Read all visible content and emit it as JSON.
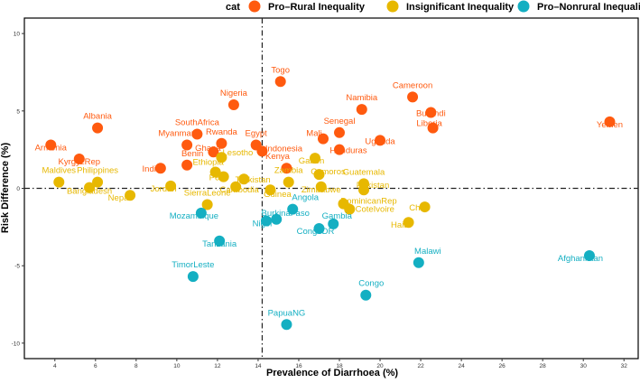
{
  "chart_data": {
    "type": "scatter",
    "title": "",
    "xlabel": "Prevalence of Diarrhoea (%)",
    "ylabel": "Risk Difference (%)",
    "xlim": [
      2.5,
      32.7
    ],
    "ylim": [
      -11,
      11
    ],
    "xticks": [
      4,
      6,
      8,
      10,
      12,
      14,
      16,
      18,
      20,
      22,
      24,
      26,
      28,
      30,
      32
    ],
    "yticks": [
      -10,
      -5,
      0,
      5,
      10
    ],
    "reference_lines": {
      "vertical_x": 14.2,
      "horizontal_y": 0
    },
    "legend": {
      "title": "cat",
      "placement": "top",
      "entries": [
        {
          "name": "Pro–Rural Inequality",
          "color": "#FF5A0F"
        },
        {
          "name": "Insignificant Inequality",
          "color": "#E7B800"
        },
        {
          "name": "Pro–Nonrural Inequality",
          "color": "#14AFC2"
        }
      ]
    },
    "series": [
      {
        "name": "Pro–Rural Inequality",
        "points": [
          {
            "label": "Armenia",
            "x": 3.8,
            "y": 2.8
          },
          {
            "label": "Albania",
            "x": 6.1,
            "y": 3.9
          },
          {
            "label": "KyrgyzRep",
            "x": 5.2,
            "y": 1.9
          },
          {
            "label": "India",
            "x": 9.2,
            "y": 1.3
          },
          {
            "label": "Benin",
            "x": 10.5,
            "y": 1.5
          },
          {
            "label": "SouthAfrica",
            "x": 11.0,
            "y": 3.5
          },
          {
            "label": "Myanmar",
            "x": 10.5,
            "y": 2.8
          },
          {
            "label": "Rwanda",
            "x": 12.2,
            "y": 2.9
          },
          {
            "label": "Ghana",
            "x": 11.8,
            "y": 2.35
          },
          {
            "label": "Nigeria",
            "x": 12.8,
            "y": 5.4
          },
          {
            "label": "Togo",
            "x": 15.1,
            "y": 6.9
          },
          {
            "label": "Egypt",
            "x": 13.9,
            "y": 2.8
          },
          {
            "label": "Indonesia",
            "x": 14.2,
            "y": 2.4
          },
          {
            "label": "Kenya",
            "x": 15.4,
            "y": 1.3
          },
          {
            "label": "Mali",
            "x": 17.2,
            "y": 3.2
          },
          {
            "label": "Senegal",
            "x": 18.0,
            "y": 3.6
          },
          {
            "label": "Honduras",
            "x": 18.0,
            "y": 2.5
          },
          {
            "label": "Namibia",
            "x": 19.1,
            "y": 5.1
          },
          {
            "label": "Uganda",
            "x": 20.0,
            "y": 3.1
          },
          {
            "label": "Cameroon",
            "x": 21.6,
            "y": 5.9
          },
          {
            "label": "Burundi",
            "x": 22.5,
            "y": 4.9
          },
          {
            "label": "Liberia",
            "x": 22.6,
            "y": 3.9
          },
          {
            "label": "Yemen",
            "x": 31.3,
            "y": 4.3
          }
        ]
      },
      {
        "name": "Insignificant Inequality",
        "points": [
          {
            "label": "Maldives",
            "x": 4.2,
            "y": 0.4
          },
          {
            "label": "Bangladesh",
            "x": 5.7,
            "y": 0.05
          },
          {
            "label": "Philippines",
            "x": 6.1,
            "y": 0.4
          },
          {
            "label": "Nepal",
            "x": 7.7,
            "y": -0.45
          },
          {
            "label": "Jordan",
            "x": 9.7,
            "y": 0.15
          },
          {
            "label": "Ethiopia",
            "x": 11.9,
            "y": 1.05
          },
          {
            "label": "Lesotho",
            "x": 12.2,
            "y": 2.0
          },
          {
            "label": "Peru",
            "x": 12.3,
            "y": 0.75
          },
          {
            "label": "SierraLeone",
            "x": 11.5,
            "y": -1.05
          },
          {
            "label": "Cambodia",
            "x": 12.9,
            "y": 0.1
          },
          {
            "label": "Tajikistan",
            "x": 13.3,
            "y": 0.6
          },
          {
            "label": "Guinea",
            "x": 14.6,
            "y": -0.1
          },
          {
            "label": "Zambia",
            "x": 15.5,
            "y": 0.4
          },
          {
            "label": "Gabon",
            "x": 16.8,
            "y": 1.95
          },
          {
            "label": "Comoros",
            "x": 17.0,
            "y": 0.9
          },
          {
            "label": "Zimbabwe",
            "x": 17.1,
            "y": 0.1
          },
          {
            "label": "Guatemala",
            "x": 19.2,
            "y": 0.3
          },
          {
            "label": "Pakistan",
            "x": 19.2,
            "y": -0.1
          },
          {
            "label": "DominicanRep",
            "x": 18.2,
            "y": -1.0
          },
          {
            "label": "CoteIvoire",
            "x": 18.5,
            "y": -1.35
          },
          {
            "label": "Haiti",
            "x": 21.4,
            "y": -2.2
          },
          {
            "label": "Chad",
            "x": 22.2,
            "y": -1.2
          }
        ]
      },
      {
        "name": "Pro–Nonrural Inequality",
        "points": [
          {
            "label": "Mozambique",
            "x": 11.2,
            "y": -1.6
          },
          {
            "label": "Tanzania",
            "x": 12.1,
            "y": -3.4
          },
          {
            "label": "TimorLeste",
            "x": 10.8,
            "y": -5.7
          },
          {
            "label": "Niger",
            "x": 14.4,
            "y": -2.1
          },
          {
            "label": "BurkinaFaso",
            "x": 14.9,
            "y": -2.0
          },
          {
            "label": "Angola",
            "x": 15.7,
            "y": -1.35
          },
          {
            "label": "CongoDR",
            "x": 17.0,
            "y": -2.6
          },
          {
            "label": "Gambia",
            "x": 17.7,
            "y": -2.3
          },
          {
            "label": "Malawi",
            "x": 21.9,
            "y": -4.8
          },
          {
            "label": "Afghanistan",
            "x": 30.3,
            "y": -4.35
          },
          {
            "label": "Congo",
            "x": 19.3,
            "y": -6.9
          },
          {
            "label": "PapuaNG",
            "x": 15.4,
            "y": -8.8
          }
        ]
      }
    ]
  }
}
